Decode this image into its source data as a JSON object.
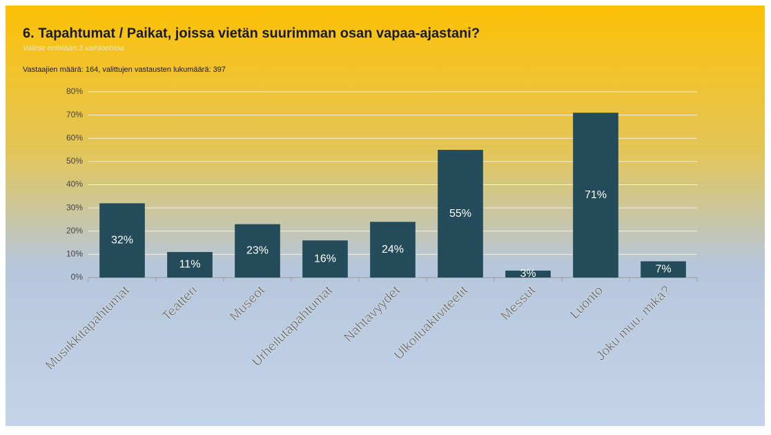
{
  "chart_data": {
    "type": "bar",
    "title": "6. Tapahtumat / Paikat, joissa vietän suurimman osan vapaa-ajastani?",
    "subtitle": "Valitse enintään 3 vaihtoehtoa",
    "annotation": "Vastaajien määrä: 164, valittujen vastausten lukumäärä: 397",
    "categories": [
      "Musiikkitapahtumat",
      "Teatteri",
      "Museot",
      "Urheilutapahtumat",
      "Nähtävyydet",
      "Ulkoiluaktiviteetit",
      "Messut",
      "Luonto",
      "Joku muu, mikä?"
    ],
    "values": [
      32,
      11,
      23,
      16,
      24,
      55,
      3,
      71,
      7
    ],
    "value_labels": [
      "32%",
      "11%",
      "23%",
      "16%",
      "24%",
      "55%",
      "3%",
      "71%",
      "7%"
    ],
    "color": "#244b5a",
    "ylim": [
      0,
      80
    ],
    "yticks": [
      {
        "value": 0,
        "label": "0%"
      },
      {
        "value": 10,
        "label": "10%"
      },
      {
        "value": 20,
        "label": "20%"
      },
      {
        "value": 30,
        "label": "30%"
      },
      {
        "value": 40,
        "label": "40%"
      },
      {
        "value": 50,
        "label": "50%"
      },
      {
        "value": 60,
        "label": "60%"
      },
      {
        "value": 70,
        "label": "70%"
      },
      {
        "value": 80,
        "label": "80%"
      }
    ],
    "grid": true
  }
}
